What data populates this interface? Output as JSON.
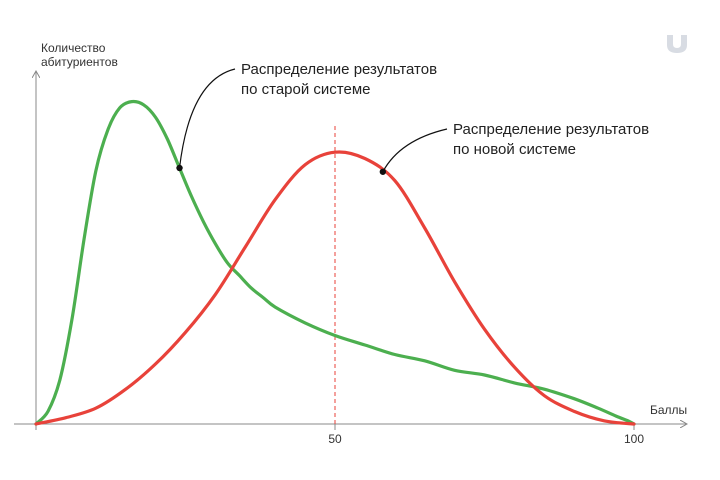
{
  "chart_data": {
    "type": "line",
    "ylabel": [
      "Количество",
      "абитуриентов"
    ],
    "xlabel": "Баллы",
    "xlim": [
      0,
      100
    ],
    "ylim": [
      0,
      1.12
    ],
    "x_ticks": [
      0,
      50,
      100
    ],
    "x_tick_labels": [
      "",
      "50",
      "100"
    ],
    "grid": false,
    "reference_line": {
      "x": 50,
      "style": "dashed",
      "color": "#e8423a"
    },
    "series": [
      {
        "color": "#4caf4f",
        "x": [
          0,
          2,
          4,
          6,
          8,
          10,
          12,
          14,
          16,
          18,
          20,
          22,
          24,
          26,
          28,
          30,
          32,
          34,
          36,
          38,
          40,
          45,
          50,
          55,
          60,
          65,
          70,
          75,
          80,
          85,
          90,
          94,
          97,
          99,
          100
        ],
        "y": [
          0,
          0.04,
          0.14,
          0.33,
          0.58,
          0.8,
          0.93,
          1.0,
          1.02,
          1.01,
          0.97,
          0.9,
          0.81,
          0.72,
          0.64,
          0.57,
          0.51,
          0.47,
          0.43,
          0.4,
          0.37,
          0.32,
          0.28,
          0.25,
          0.22,
          0.2,
          0.17,
          0.155,
          0.13,
          0.11,
          0.08,
          0.05,
          0.025,
          0.01,
          0
        ],
        "label": [
          "Распределение результатов",
          "по старой системе"
        ],
        "label_at_x": 24
      },
      {
        "color": "#e8423a",
        "x": [
          0,
          5,
          10,
          15,
          20,
          25,
          30,
          35,
          40,
          45,
          50,
          55,
          60,
          65,
          70,
          75,
          80,
          85,
          90,
          95,
          100
        ],
        "y": [
          0,
          0.02,
          0.05,
          0.11,
          0.19,
          0.29,
          0.41,
          0.56,
          0.71,
          0.82,
          0.86,
          0.84,
          0.77,
          0.62,
          0.45,
          0.3,
          0.18,
          0.09,
          0.04,
          0.01,
          0
        ],
        "label": [
          "Распределение результатов",
          "по новой системе"
        ],
        "label_at_x": 58
      }
    ]
  },
  "logo": {
    "icon": "brand-logo-icon",
    "color": "#d8dce3"
  }
}
